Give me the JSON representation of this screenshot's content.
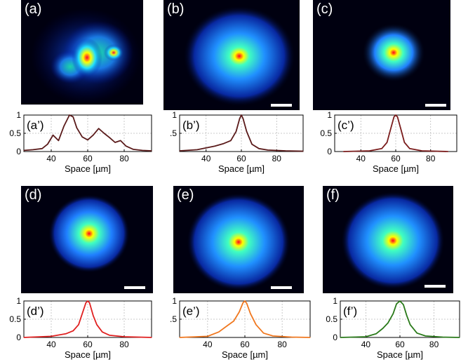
{
  "figure": {
    "xlabel": "Space [µm]",
    "panels": [
      {
        "id": "a",
        "label": "(a)",
        "scalebar": false,
        "beam": "speckle"
      },
      {
        "id": "b",
        "label": "(b)",
        "scalebar": true,
        "beam": "broad"
      },
      {
        "id": "c",
        "label": "(c)",
        "scalebar": true,
        "beam": "narrow"
      },
      {
        "id": "d",
        "label": "(d)",
        "scalebar": true,
        "beam": "medium"
      },
      {
        "id": "e",
        "label": "(e)",
        "scalebar": true,
        "beam": "broad"
      },
      {
        "id": "f",
        "label": "(f)",
        "scalebar": true,
        "beam": "broad"
      }
    ]
  },
  "chart_data": [
    {
      "type": "line",
      "label": "(a’)",
      "color": "#5a1a1a",
      "xlim": [
        25,
        95
      ],
      "ylim": [
        0,
        1
      ],
      "xticks": [
        40,
        60,
        80
      ],
      "yticks": [
        0,
        0.5,
        1
      ],
      "ytick_labels": [
        "0",
        "0.5",
        "1"
      ],
      "x": [
        25,
        30,
        35,
        38,
        41,
        44,
        47,
        50,
        52,
        54,
        57,
        60,
        63,
        66,
        69,
        72,
        75,
        78,
        81,
        85,
        90,
        95
      ],
      "y": [
        0.03,
        0.05,
        0.08,
        0.2,
        0.45,
        0.3,
        0.7,
        1.0,
        0.95,
        0.65,
        0.4,
        0.32,
        0.45,
        0.63,
        0.5,
        0.38,
        0.25,
        0.3,
        0.15,
        0.06,
        0.03,
        0.02
      ]
    },
    {
      "type": "line",
      "label": "(b’)",
      "color": "#5a1a1a",
      "xlim": [
        25,
        95
      ],
      "ylim": [
        0,
        1
      ],
      "xticks": [
        40,
        60,
        80
      ],
      "yticks": [
        0.5,
        1
      ],
      "ytick_labels": [
        ".5",
        "1"
      ],
      "x": [
        25,
        35,
        45,
        50,
        54,
        57,
        59,
        60,
        61,
        63,
        66,
        70,
        75,
        85,
        95
      ],
      "y": [
        0.02,
        0.05,
        0.15,
        0.22,
        0.3,
        0.55,
        0.9,
        1.0,
        0.9,
        0.55,
        0.2,
        0.08,
        0.04,
        0.02,
        0.01
      ]
    },
    {
      "type": "line",
      "label": "(c’)",
      "color": "#7a1c1c",
      "xlim": [
        25,
        95
      ],
      "ylim": [
        0,
        1
      ],
      "xticks": [
        40,
        60,
        80
      ],
      "yticks": [
        0,
        0.5,
        1
      ],
      "ytick_labels": [
        "0",
        "0.5",
        "1"
      ],
      "x": [
        30,
        45,
        52,
        55,
        57,
        59,
        60,
        61,
        63,
        65,
        68,
        75,
        90
      ],
      "y": [
        0.0,
        0.02,
        0.08,
        0.25,
        0.6,
        0.95,
        1.0,
        0.95,
        0.6,
        0.25,
        0.08,
        0.02,
        0.0
      ]
    },
    {
      "type": "line",
      "label": "(d’)",
      "color": "#e02020",
      "xlim": [
        25,
        95
      ],
      "ylim": [
        0,
        1
      ],
      "xticks": [
        40,
        60,
        80
      ],
      "yticks": [
        0,
        0.5,
        1
      ],
      "ytick_labels": [
        "0",
        "0.5",
        "1"
      ],
      "x": [
        25,
        40,
        48,
        52,
        55,
        57,
        59,
        60,
        61,
        63,
        65,
        68,
        72,
        80,
        95
      ],
      "y": [
        0.0,
        0.03,
        0.1,
        0.18,
        0.35,
        0.65,
        0.95,
        1.0,
        0.95,
        0.6,
        0.35,
        0.15,
        0.06,
        0.02,
        0.0
      ]
    },
    {
      "type": "line",
      "label": "(e’)",
      "color": "#f07820",
      "xlim": [
        25,
        95
      ],
      "ylim": [
        0,
        1
      ],
      "xticks": [
        40,
        60,
        80
      ],
      "yticks": [
        0.5,
        1
      ],
      "ytick_labels": [
        ".5",
        "1"
      ],
      "x": [
        25,
        40,
        46,
        50,
        54,
        57,
        59,
        60,
        61,
        63,
        66,
        70,
        75,
        85,
        95
      ],
      "y": [
        0.0,
        0.03,
        0.15,
        0.3,
        0.45,
        0.7,
        0.95,
        1.0,
        0.93,
        0.65,
        0.35,
        0.12,
        0.04,
        0.01,
        0.0
      ]
    },
    {
      "type": "line",
      "label": "(f’)",
      "color": "#2a7a1a",
      "xlim": [
        25,
        95
      ],
      "ylim": [
        0,
        1
      ],
      "xticks": [
        40,
        60,
        80
      ],
      "yticks": [
        0,
        0.5,
        1
      ],
      "ytick_labels": [
        "0",
        "0.5",
        "1"
      ],
      "x": [
        25,
        40,
        46,
        50,
        53,
        56,
        58,
        60,
        62,
        64,
        66,
        70,
        75,
        85,
        95
      ],
      "y": [
        0.0,
        0.02,
        0.1,
        0.25,
        0.4,
        0.65,
        0.92,
        1.0,
        0.9,
        0.6,
        0.35,
        0.12,
        0.04,
        0.01,
        0.0
      ]
    }
  ]
}
